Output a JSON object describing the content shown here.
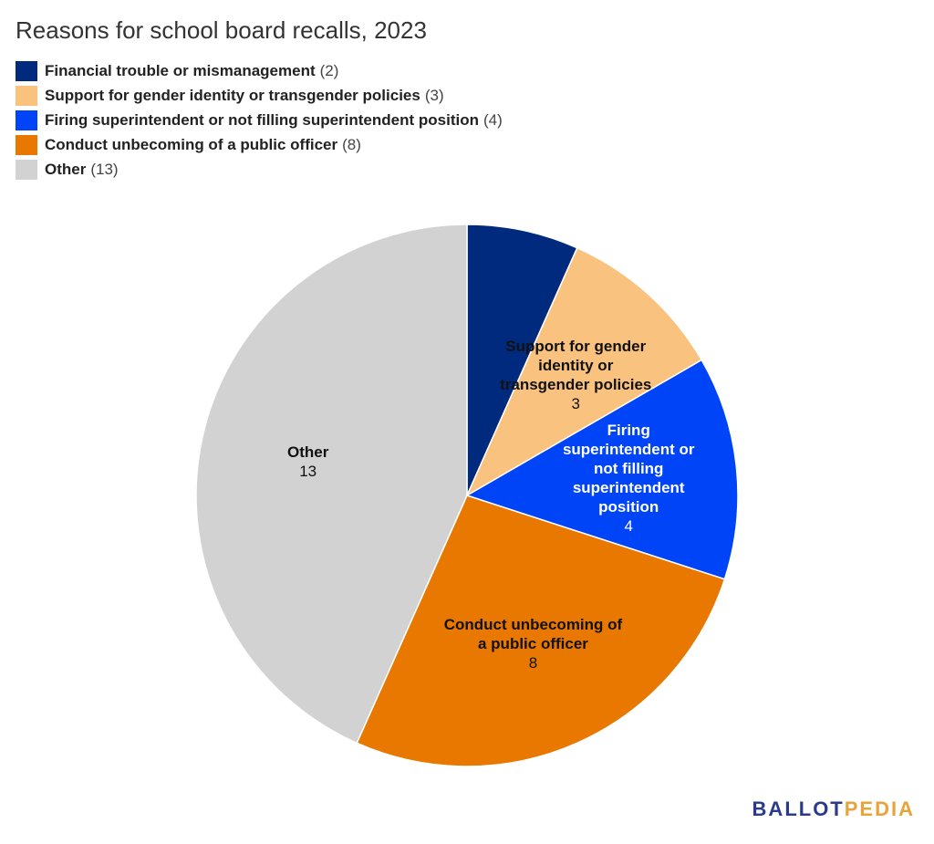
{
  "chart_data": {
    "type": "pie",
    "title": "Reasons for school board recalls, 2023",
    "categories": [
      "Financial trouble or mismanagement",
      "Support for gender identity or transgender policies",
      "Firing superintendent or not filling superintendent position",
      "Conduct unbecoming of a public officer",
      "Other"
    ],
    "values": [
      2,
      3,
      4,
      8,
      13
    ],
    "value_labels": [
      "(2)",
      "(3)",
      "(4)",
      "(8)",
      "(13)"
    ],
    "colors": [
      "#002a7e",
      "#f9c27f",
      "#0044f8",
      "#e97800",
      "#d2d2d2"
    ],
    "label_colors": [
      "#ffffff",
      "#111111",
      "#ffffff",
      "#111111",
      "#111111"
    ],
    "legend": "top-left",
    "brand": [
      "BALLOT",
      "PEDIA"
    ]
  }
}
